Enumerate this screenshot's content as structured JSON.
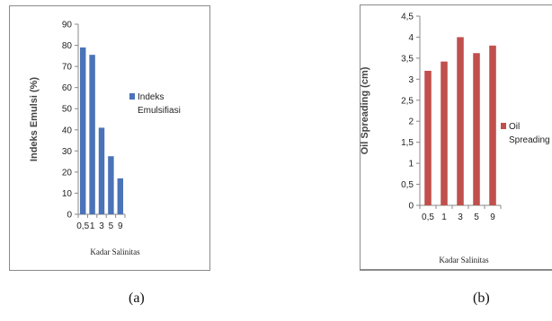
{
  "chart_data": [
    {
      "type": "bar",
      "categories": [
        "0,5",
        "1",
        "3",
        "5",
        "9"
      ],
      "values": [
        79,
        75.5,
        41,
        27.5,
        17
      ],
      "ylabel": "Indeks Emulsi (%)",
      "xlabel": "Kadar Salinitas",
      "ylim": [
        0,
        90
      ],
      "yticks": [
        "0",
        "10",
        "20",
        "30",
        "40",
        "50",
        "60",
        "70",
        "80",
        "90"
      ],
      "legend": [
        "Indeks",
        "Emulsifiasi"
      ],
      "legend_position": "right",
      "grid": false,
      "color": "#4a73b8"
    },
    {
      "type": "bar",
      "categories": [
        "0,5",
        "1",
        "3",
        "5",
        "9"
      ],
      "values": [
        3.2,
        3.42,
        4.0,
        3.62,
        3.8
      ],
      "ylabel": "Oil Spreading (cm)",
      "xlabel": "Kadar Salinitas",
      "ylim": [
        0,
        4.5
      ],
      "yticks": [
        "0",
        "0,5",
        "1",
        "1,5",
        "2",
        "2,5",
        "3",
        "3,5",
        "4",
        "4,5"
      ],
      "legend": [
        "Oil",
        "Spreading"
      ],
      "legend_position": "right",
      "grid": false,
      "color": "#c0504d"
    }
  ],
  "captions": [
    "(a)",
    "(b)"
  ]
}
